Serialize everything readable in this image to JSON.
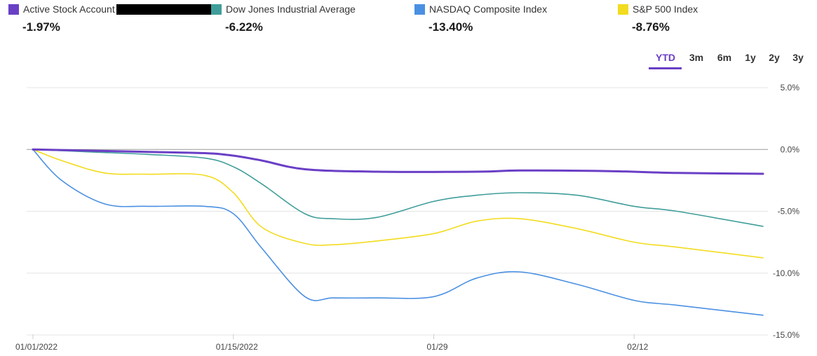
{
  "legend": [
    {
      "name": "Active Stock Account",
      "value": "-1.97%",
      "color": "#6a3fc6",
      "redacted": true
    },
    {
      "name": "Dow Jones Industrial Average",
      "value": "-6.22%",
      "color": "#3f9e9a",
      "redacted": false
    },
    {
      "name": "NASDAQ Composite Index",
      "value": "-13.40%",
      "color": "#4a90e2",
      "redacted": false
    },
    {
      "name": "S&P 500 Index",
      "value": "-8.76%",
      "color": "#f2dc1f",
      "redacted": false
    }
  ],
  "range_tabs": {
    "items": [
      "YTD",
      "3m",
      "6m",
      "1y",
      "2y",
      "3y"
    ],
    "active": "YTD"
  },
  "chart_data": {
    "type": "line",
    "x_ticks": [
      {
        "label": "01/01/2022",
        "date": "2022-01-01"
      },
      {
        "label": "01/15/2022",
        "date": "2022-01-15"
      },
      {
        "label": "01/29",
        "date": "2022-01-29"
      },
      {
        "label": "02/12",
        "date": "2022-02-12"
      }
    ],
    "x_range": [
      "2022-01-01",
      "2022-02-21"
    ],
    "y_ticks": [
      5,
      0,
      -5,
      -10,
      -15
    ],
    "y_tick_labels": [
      "5.0%",
      "0.0%",
      "-5.0%",
      "-10.0%",
      "-15.0%"
    ],
    "ylim": [
      -15,
      5
    ],
    "grid": true,
    "series": [
      {
        "name": "Active Stock Account",
        "color": "#6a3fc6",
        "x": [
          "2022-01-01",
          "2022-01-05",
          "2022-01-09",
          "2022-01-13",
          "2022-01-15",
          "2022-01-17",
          "2022-01-20",
          "2022-01-25",
          "2022-02-01",
          "2022-02-04",
          "2022-02-10",
          "2022-02-15",
          "2022-02-21"
        ],
        "y": [
          0,
          -0.1,
          -0.2,
          -0.3,
          -0.5,
          -0.9,
          -1.6,
          -1.8,
          -1.8,
          -1.7,
          -1.75,
          -1.9,
          -1.97
        ]
      },
      {
        "name": "Dow Jones Industrial Average",
        "color": "#3f9e9a",
        "x": [
          "2022-01-01",
          "2022-01-05",
          "2022-01-09",
          "2022-01-13",
          "2022-01-15",
          "2022-01-17",
          "2022-01-20",
          "2022-01-22",
          "2022-01-25",
          "2022-01-29",
          "2022-02-01",
          "2022-02-04",
          "2022-02-08",
          "2022-02-12",
          "2022-02-15",
          "2022-02-21"
        ],
        "y": [
          0,
          -0.2,
          -0.4,
          -0.7,
          -1.4,
          -2.8,
          -5.2,
          -5.6,
          -5.5,
          -4.2,
          -3.7,
          -3.5,
          -3.7,
          -4.6,
          -5.0,
          -6.22
        ]
      },
      {
        "name": "NASDAQ Composite Index",
        "color": "#4a90e2",
        "x": [
          "2022-01-01",
          "2022-01-03",
          "2022-01-06",
          "2022-01-09",
          "2022-01-13",
          "2022-01-15",
          "2022-01-17",
          "2022-01-20",
          "2022-01-22",
          "2022-01-25",
          "2022-01-29",
          "2022-02-01",
          "2022-02-04",
          "2022-02-08",
          "2022-02-12",
          "2022-02-15",
          "2022-02-21"
        ],
        "y": [
          0,
          -2.5,
          -4.4,
          -4.6,
          -4.6,
          -5.2,
          -8.0,
          -11.9,
          -12.0,
          -12.0,
          -11.9,
          -10.4,
          -9.9,
          -10.9,
          -12.2,
          -12.6,
          -13.4
        ]
      },
      {
        "name": "S&P 500 Index",
        "color": "#f2dc1f",
        "x": [
          "2022-01-01",
          "2022-01-03",
          "2022-01-06",
          "2022-01-09",
          "2022-01-13",
          "2022-01-15",
          "2022-01-17",
          "2022-01-20",
          "2022-01-22",
          "2022-01-25",
          "2022-01-29",
          "2022-02-01",
          "2022-02-04",
          "2022-02-08",
          "2022-02-12",
          "2022-02-15",
          "2022-02-21"
        ],
        "y": [
          0,
          -0.9,
          -1.9,
          -2.0,
          -2.1,
          -3.5,
          -6.3,
          -7.6,
          -7.7,
          -7.4,
          -6.8,
          -5.8,
          -5.6,
          -6.4,
          -7.5,
          -7.9,
          -8.76
        ]
      }
    ]
  }
}
